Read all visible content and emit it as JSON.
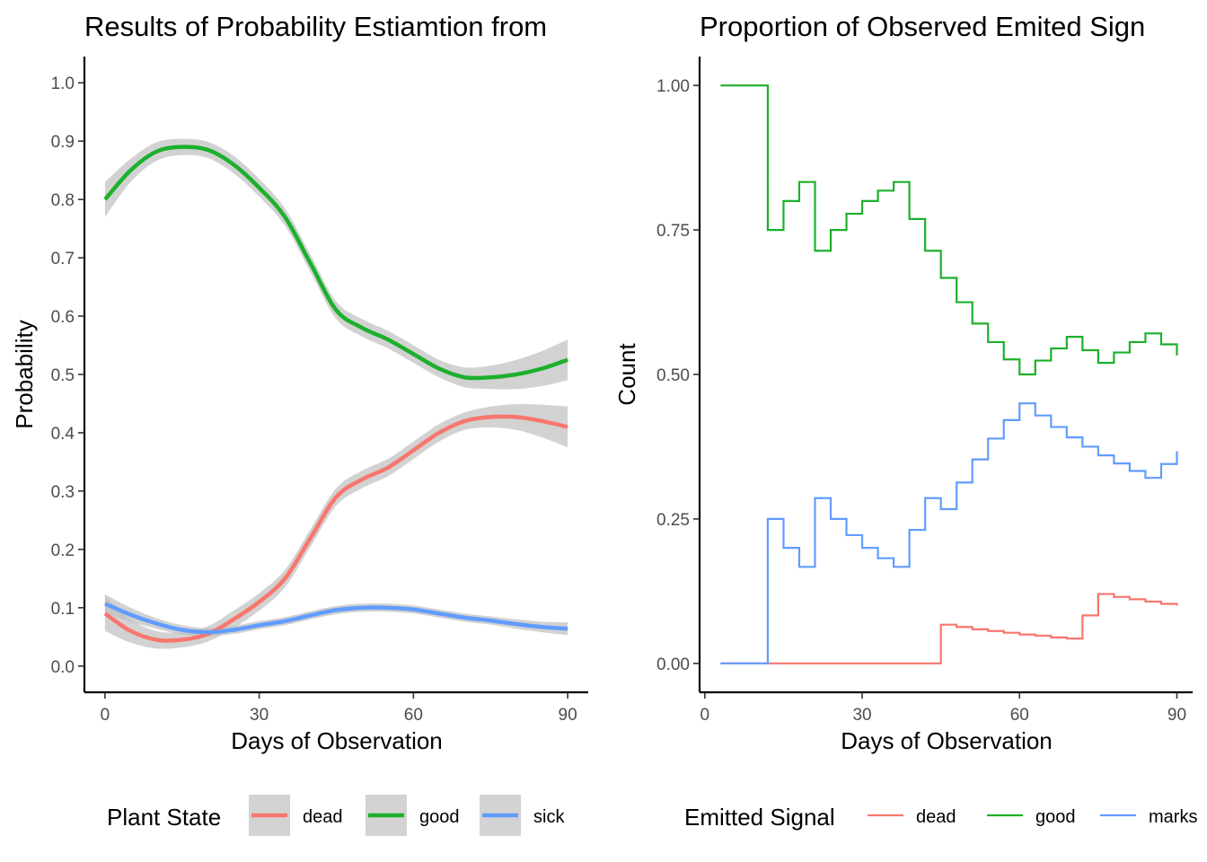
{
  "chart_data": [
    {
      "type": "line",
      "title": "Results of Probability Estiamtion from",
      "xlabel": "Days of Observation",
      "ylabel": "Probability",
      "xlim": [
        -4,
        94
      ],
      "ylim": [
        -0.045,
        1.045
      ],
      "x_ticks": [
        0,
        30,
        60,
        90
      ],
      "y_ticks": [
        0.0,
        0.1,
        0.2,
        0.3,
        0.4,
        0.5,
        0.6,
        0.7,
        0.8,
        0.9,
        1.0
      ],
      "x_tick_labels": [
        "0",
        "30",
        "60",
        "90"
      ],
      "y_tick_labels": [
        "0.0",
        "0.1",
        "0.2",
        "0.3",
        "0.4",
        "0.5",
        "0.6",
        "0.7",
        "0.8",
        "0.9",
        "1.0"
      ],
      "grid": false,
      "legend": {
        "title": "Plant State",
        "position": "bottom"
      },
      "smooth": true,
      "confidence_band": true,
      "x": [
        0,
        5,
        10,
        15,
        20,
        25,
        30,
        35,
        40,
        45,
        50,
        55,
        60,
        65,
        70,
        75,
        80,
        85,
        90
      ],
      "series": [
        {
          "name": "dead",
          "color": "#F8766D",
          "values": [
            0.09,
            0.06,
            0.045,
            0.045,
            0.055,
            0.08,
            0.11,
            0.15,
            0.22,
            0.29,
            0.32,
            0.34,
            0.37,
            0.4,
            0.42,
            0.427,
            0.427,
            0.42,
            0.41
          ],
          "band": [
            0.03,
            0.02,
            0.015,
            0.013,
            0.013,
            0.015,
            0.015,
            0.015,
            0.015,
            0.015,
            0.015,
            0.015,
            0.015,
            0.015,
            0.015,
            0.018,
            0.022,
            0.028,
            0.035
          ]
        },
        {
          "name": "good",
          "color": "#1CB02C",
          "values": [
            0.8,
            0.85,
            0.882,
            0.89,
            0.885,
            0.86,
            0.82,
            0.77,
            0.69,
            0.61,
            0.58,
            0.56,
            0.535,
            0.51,
            0.495,
            0.495,
            0.5,
            0.51,
            0.525
          ],
          "band": [
            0.03,
            0.02,
            0.016,
            0.014,
            0.014,
            0.015,
            0.015,
            0.015,
            0.015,
            0.015,
            0.015,
            0.015,
            0.015,
            0.015,
            0.017,
            0.02,
            0.025,
            0.03,
            0.035
          ]
        },
        {
          "name": "sick",
          "color": "#619CFF",
          "values": [
            0.107,
            0.088,
            0.073,
            0.062,
            0.058,
            0.062,
            0.07,
            0.077,
            0.087,
            0.096,
            0.1,
            0.1,
            0.097,
            0.09,
            0.083,
            0.078,
            0.072,
            0.067,
            0.064
          ],
          "band": [
            0.016,
            0.012,
            0.009,
            0.008,
            0.007,
            0.007,
            0.007,
            0.007,
            0.007,
            0.007,
            0.007,
            0.007,
            0.007,
            0.007,
            0.007,
            0.007,
            0.008,
            0.009,
            0.011
          ]
        }
      ]
    },
    {
      "type": "line",
      "step": true,
      "title": "Proportion of Observed Emited Sign",
      "xlabel": "Days of Observation",
      "ylabel": "Count",
      "xlim": [
        -1,
        93
      ],
      "ylim": [
        -0.05,
        1.05
      ],
      "x_ticks": [
        0,
        30,
        60,
        90
      ],
      "y_ticks": [
        0,
        0.25,
        0.5,
        0.75,
        1.0
      ],
      "x_tick_labels": [
        "0",
        "30",
        "60",
        "90"
      ],
      "y_tick_labels": [
        "0.00",
        "0.25",
        "0.50",
        "0.75",
        "1.00"
      ],
      "grid": false,
      "legend": {
        "title": "Emitted Signal",
        "position": "bottom"
      },
      "x": [
        3,
        6,
        9,
        12,
        15,
        18,
        21,
        24,
        27,
        30,
        33,
        36,
        39,
        42,
        45,
        48,
        51,
        54,
        57,
        60,
        63,
        66,
        69,
        72,
        75,
        78,
        81,
        84,
        87,
        90
      ],
      "series": [
        {
          "name": "dead",
          "color": "#F8766D",
          "values": [
            0,
            0,
            0,
            0,
            0,
            0,
            0,
            0,
            0,
            0,
            0,
            0,
            0,
            0,
            0.067,
            0.063,
            0.059,
            0.056,
            0.053,
            0.05,
            0.048,
            0.045,
            0.043,
            0.083,
            0.12,
            0.115,
            0.111,
            0.107,
            0.103,
            0.1
          ]
        },
        {
          "name": "good",
          "color": "#1CB02C",
          "values": [
            1.0,
            1.0,
            1.0,
            0.75,
            0.8,
            0.833,
            0.714,
            0.75,
            0.778,
            0.8,
            0.818,
            0.833,
            0.769,
            0.714,
            0.667,
            0.625,
            0.588,
            0.556,
            0.526,
            0.5,
            0.524,
            0.545,
            0.565,
            0.542,
            0.52,
            0.538,
            0.556,
            0.571,
            0.552,
            0.533
          ]
        },
        {
          "name": "marks",
          "color": "#619CFF",
          "values": [
            0,
            0,
            0,
            0.25,
            0.2,
            0.167,
            0.286,
            0.25,
            0.222,
            0.2,
            0.182,
            0.167,
            0.231,
            0.286,
            0.267,
            0.313,
            0.353,
            0.389,
            0.421,
            0.45,
            0.429,
            0.409,
            0.391,
            0.375,
            0.36,
            0.346,
            0.333,
            0.321,
            0.345,
            0.367
          ]
        }
      ]
    }
  ]
}
